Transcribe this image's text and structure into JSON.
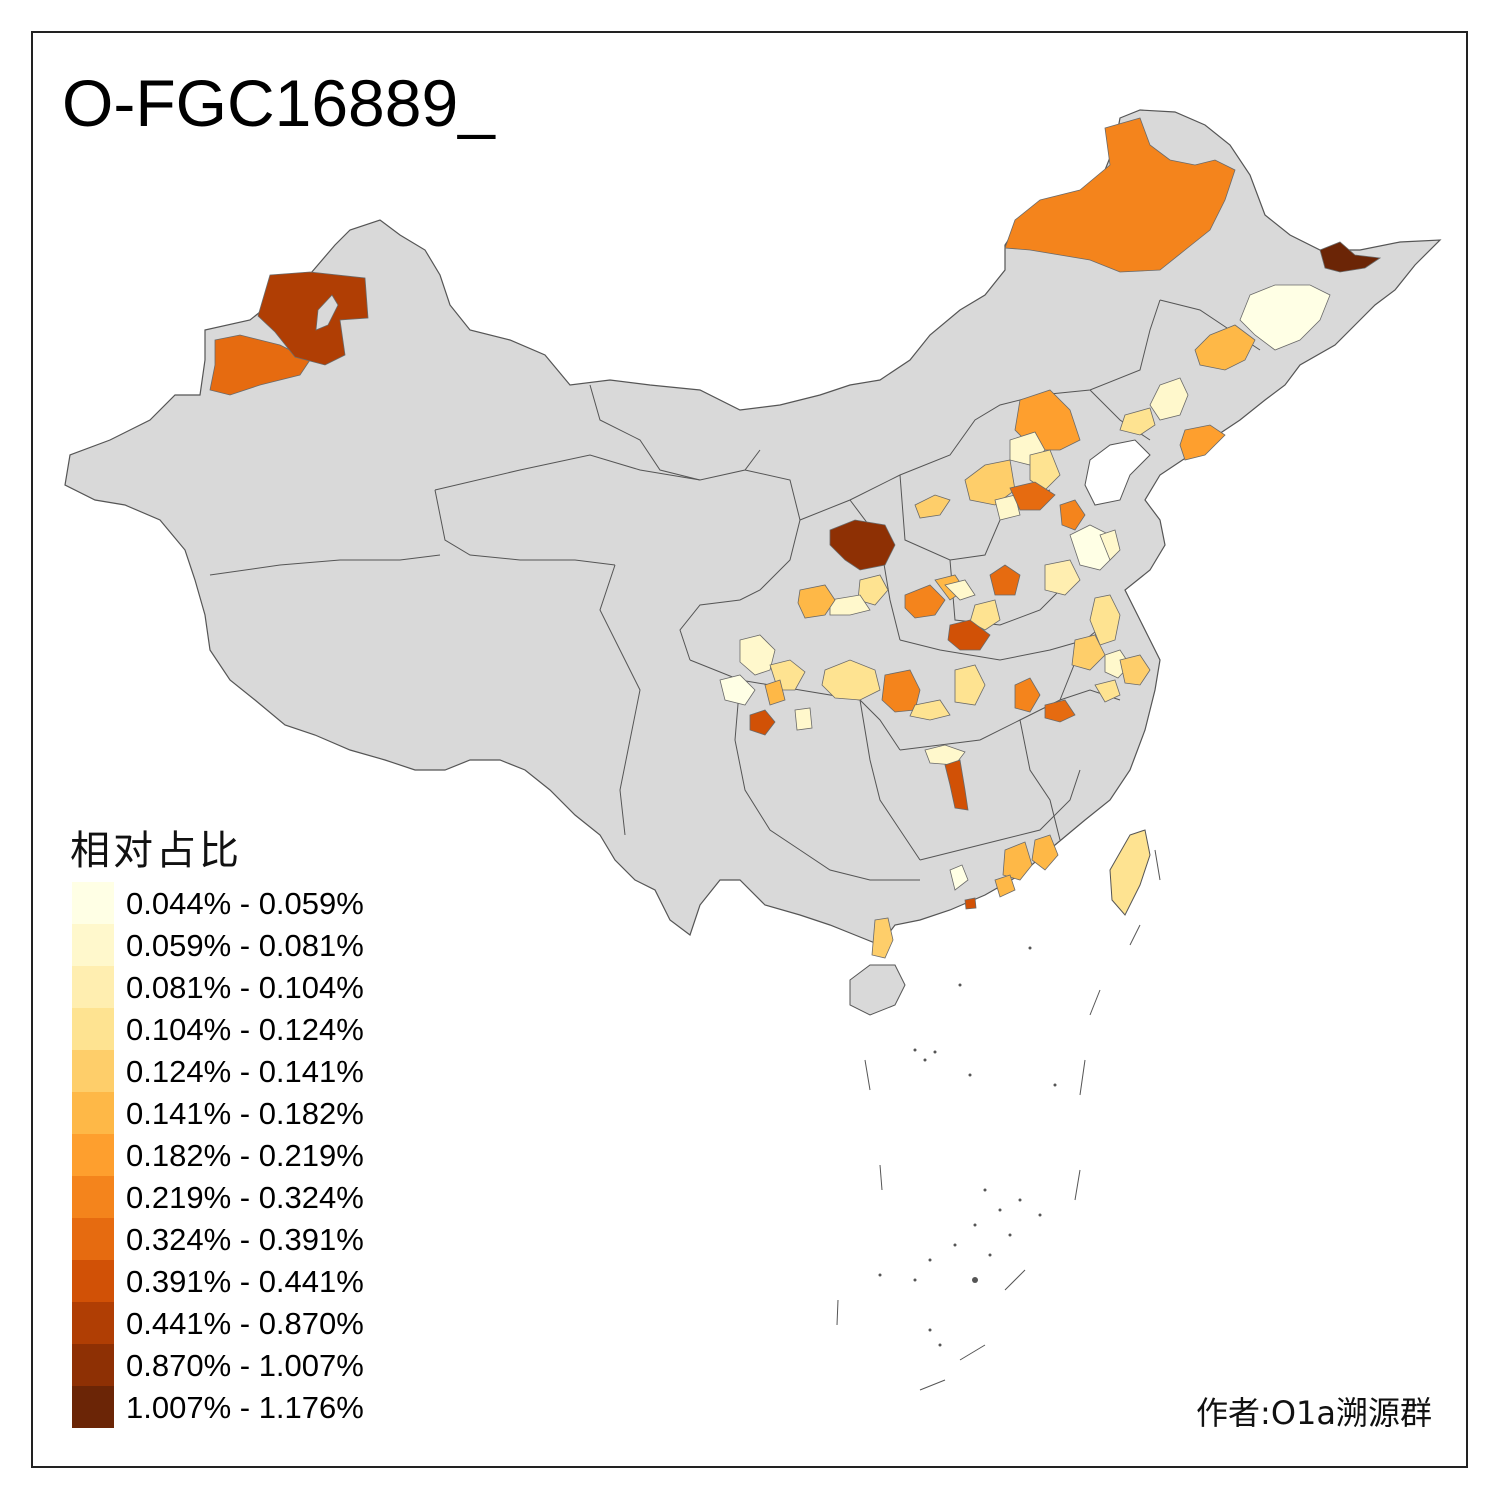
{
  "title": "O-FGC16889_",
  "legend": {
    "title": "相对占比",
    "items": [
      {
        "label": "0.044% - 0.059%",
        "color": "#ffffe5"
      },
      {
        "label": "0.059% - 0.081%",
        "color": "#fff8cc"
      },
      {
        "label": "0.081% - 0.104%",
        "color": "#ffeeb0"
      },
      {
        "label": "0.104% - 0.124%",
        "color": "#fee391"
      },
      {
        "label": "0.124% - 0.141%",
        "color": "#fece6a"
      },
      {
        "label": "0.141% - 0.182%",
        "color": "#feb847"
      },
      {
        "label": "0.182% - 0.219%",
        "color": "#fe9f2e"
      },
      {
        "label": "0.219% - 0.324%",
        "color": "#f4841c"
      },
      {
        "label": "0.324% - 0.391%",
        "color": "#e66b10"
      },
      {
        "label": "0.391% - 0.441%",
        "color": "#d15106"
      },
      {
        "label": "0.441% - 0.870%",
        "color": "#b03e04"
      },
      {
        "label": "0.870% - 1.007%",
        "color": "#8e3004"
      },
      {
        "label": "1.007% - 1.176%",
        "color": "#6b2506"
      }
    ]
  },
  "credit": "作者:O1a溯源群",
  "colors": {
    "land": "#d9d9d9",
    "border": "#555555",
    "frame": "#222222"
  }
}
